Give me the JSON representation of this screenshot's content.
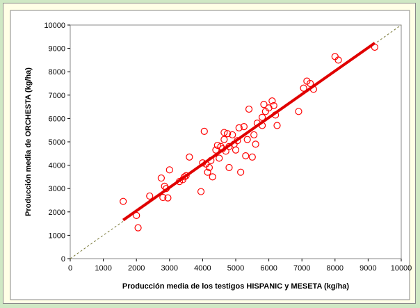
{
  "chart_data": {
    "type": "scatter",
    "title": "",
    "xlabel": "Producción media de los testigos HISPANIC y MESETA (kg/ha)",
    "ylabel": "Producción media de ORCHESTA  (kg/ha)",
    "xlim": [
      0,
      10000
    ],
    "ylim": [
      0,
      10000
    ],
    "x_ticks": [
      0,
      1000,
      2000,
      3000,
      4000,
      5000,
      6000,
      7000,
      8000,
      9000,
      10000
    ],
    "y_ticks": [
      0,
      1000,
      2000,
      3000,
      4000,
      5000,
      6000,
      7000,
      8000,
      9000,
      10000
    ],
    "grid": false,
    "legend": "none",
    "marker_color": "#ff0000",
    "fit_line_color": "#e00000",
    "reference_line_color": "#7a7a3a",
    "reference_line": {
      "x": [
        0,
        10000
      ],
      "y": [
        0,
        10000
      ],
      "style": "dashed"
    },
    "fit_line": {
      "x": [
        1600,
        9200
      ],
      "y": [
        1650,
        9230
      ]
    },
    "points": [
      [
        1600,
        2450
      ],
      [
        2000,
        1850
      ],
      [
        2050,
        1320
      ],
      [
        2400,
        2680
      ],
      [
        2750,
        3450
      ],
      [
        2800,
        2620
      ],
      [
        2850,
        3100
      ],
      [
        2900,
        3000
      ],
      [
        2950,
        2600
      ],
      [
        3000,
        3800
      ],
      [
        3300,
        3300
      ],
      [
        3400,
        3380
      ],
      [
        3450,
        3500
      ],
      [
        3500,
        3550
      ],
      [
        3600,
        4350
      ],
      [
        3950,
        2870
      ],
      [
        4000,
        4100
      ],
      [
        4050,
        5450
      ],
      [
        4100,
        4050
      ],
      [
        4150,
        3700
      ],
      [
        4200,
        3900
      ],
      [
        4250,
        4200
      ],
      [
        4300,
        3500
      ],
      [
        4400,
        4650
      ],
      [
        4450,
        4850
      ],
      [
        4500,
        4300
      ],
      [
        4550,
        4800
      ],
      [
        4600,
        4700
      ],
      [
        4650,
        5100
      ],
      [
        4650,
        5400
      ],
      [
        4700,
        4600
      ],
      [
        4750,
        5350
      ],
      [
        4800,
        3900
      ],
      [
        4800,
        4800
      ],
      [
        4900,
        5300
      ],
      [
        4950,
        4900
      ],
      [
        5000,
        4650
      ],
      [
        5050,
        5050
      ],
      [
        5100,
        5600
      ],
      [
        5150,
        3700
      ],
      [
        5250,
        5650
      ],
      [
        5300,
        4400
      ],
      [
        5350,
        5100
      ],
      [
        5400,
        6400
      ],
      [
        5500,
        4350
      ],
      [
        5550,
        5300
      ],
      [
        5600,
        4900
      ],
      [
        5650,
        5800
      ],
      [
        5800,
        5700
      ],
      [
        5800,
        6050
      ],
      [
        5850,
        6600
      ],
      [
        5900,
        6300
      ],
      [
        6000,
        6450
      ],
      [
        6100,
        6750
      ],
      [
        6150,
        6550
      ],
      [
        6200,
        6150
      ],
      [
        6250,
        5700
      ],
      [
        6900,
        6300
      ],
      [
        7050,
        7300
      ],
      [
        7150,
        7600
      ],
      [
        7250,
        7500
      ],
      [
        7350,
        7250
      ],
      [
        8000,
        8650
      ],
      [
        8100,
        8500
      ],
      [
        9200,
        9050
      ]
    ]
  }
}
